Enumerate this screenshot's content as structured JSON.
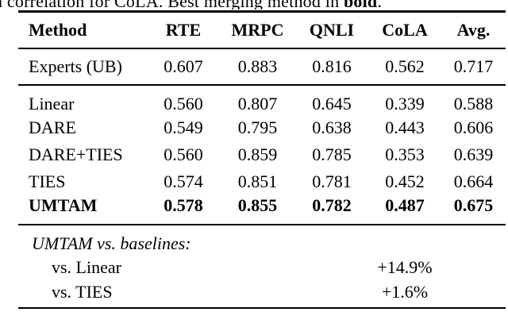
{
  "caption": {
    "fragment": "n",
    "text_before_bold": "correlation for CoLA. Best merging method in ",
    "bold_word": "bold",
    "suffix": "."
  },
  "table": {
    "columns": [
      "Method",
      "RTE",
      "MRPC",
      "QNLI",
      "CoLA",
      "Avg."
    ],
    "experts_row": {
      "method": "Experts (UB)",
      "values": [
        "0.607",
        "0.883",
        "0.816",
        "0.562",
        "0.717"
      ]
    },
    "body_rows": [
      {
        "method": "Linear",
        "bold": false,
        "values": [
          "0.560",
          "0.807",
          "0.645",
          "0.339",
          "0.588"
        ]
      },
      {
        "method": "DARE",
        "bold": false,
        "values": [
          "0.549",
          "0.795",
          "0.638",
          "0.443",
          "0.606"
        ]
      },
      {
        "method": "DARE+TIES",
        "bold": false,
        "values": [
          "0.560",
          "0.859",
          "0.785",
          "0.353",
          "0.639"
        ]
      },
      {
        "method": "TIES",
        "bold": false,
        "values": [
          "0.574",
          "0.851",
          "0.781",
          "0.452",
          "0.664"
        ]
      },
      {
        "method": "UMTAM",
        "bold": true,
        "values": [
          "0.578",
          "0.855",
          "0.782",
          "0.487",
          "0.675"
        ]
      }
    ],
    "comparison": {
      "header": "UMTAM vs. baselines:",
      "rows": [
        {
          "label": "vs. Linear",
          "value": "+14.9%"
        },
        {
          "label": "vs. TIES",
          "value": "+1.6%"
        }
      ]
    }
  },
  "colors": {
    "text": "#000000",
    "background": "#ffffff",
    "rule": "#000000"
  }
}
